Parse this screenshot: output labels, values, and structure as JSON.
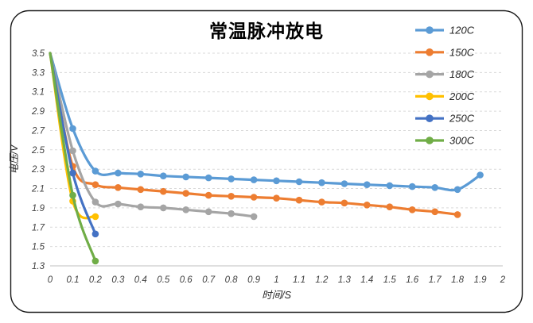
{
  "chart_data": {
    "type": "line",
    "title": "常温脉冲放电",
    "xlabel": "时间/S",
    "ylabel": "电压/V",
    "xlim": [
      0,
      2
    ],
    "ylim": [
      1.3,
      3.5
    ],
    "grid": "horizontal dashed gridlines every 0.2V",
    "legend_position": "right-top",
    "gridline_color": "#d9d9d9",
    "axis_line_color": "#bfbfbf",
    "x_tick_labels": [
      "0",
      "0.1",
      "0.2",
      "0.3",
      "0.4",
      "0.5",
      "0.6",
      "0.7",
      "0.8",
      "0.9",
      "1",
      "1.1",
      "1.2",
      "1.3",
      "1.4",
      "1.5",
      "1.6",
      "1.7",
      "1.8",
      "1.9",
      "2"
    ],
    "y_tick_labels": [
      "3.5",
      "3.3",
      "3.1",
      "2.9",
      "2.7",
      "2.5",
      "2.3",
      "2.1",
      "1.9",
      "1.7",
      "1.5",
      "1.3"
    ],
    "y_tick_values": [
      3.5,
      3.3,
      3.1,
      2.9,
      2.7,
      2.5,
      2.3,
      2.1,
      1.9,
      1.7,
      1.5,
      1.3
    ],
    "series": [
      {
        "name": "120C",
        "color": "#5B9BD5",
        "x": [
          0,
          0.1,
          0.2,
          0.3,
          0.4,
          0.5,
          0.6,
          0.7,
          0.8,
          0.9,
          1.0,
          1.1,
          1.2,
          1.3,
          1.4,
          1.5,
          1.6,
          1.7,
          1.8,
          1.9
        ],
        "y": [
          3.5,
          2.72,
          2.28,
          2.26,
          2.25,
          2.23,
          2.22,
          2.21,
          2.2,
          2.19,
          2.18,
          2.17,
          2.16,
          2.15,
          2.14,
          2.13,
          2.12,
          2.11,
          2.09,
          2.24
        ]
      },
      {
        "name": "150C",
        "color": "#ED7D31",
        "x": [
          0,
          0.1,
          0.2,
          0.3,
          0.4,
          0.5,
          0.6,
          0.7,
          0.8,
          0.9,
          1.0,
          1.1,
          1.2,
          1.3,
          1.4,
          1.5,
          1.6,
          1.7,
          1.8
        ],
        "y": [
          3.5,
          2.33,
          2.14,
          2.11,
          2.09,
          2.07,
          2.05,
          2.03,
          2.02,
          2.01,
          2.0,
          1.98,
          1.96,
          1.95,
          1.93,
          1.91,
          1.88,
          1.86,
          1.83
        ]
      },
      {
        "name": "180C",
        "color": "#A5A5A5",
        "x": [
          0,
          0.1,
          0.2,
          0.3,
          0.4,
          0.5,
          0.6,
          0.7,
          0.8,
          0.9
        ],
        "y": [
          3.5,
          2.49,
          1.96,
          1.94,
          1.91,
          1.9,
          1.88,
          1.86,
          1.84,
          1.81
        ]
      },
      {
        "name": "200C",
        "color": "#FFC000",
        "x": [
          0,
          0.1,
          0.2
        ],
        "y": [
          3.5,
          1.97,
          1.81
        ]
      },
      {
        "name": "250C",
        "color": "#4472C4",
        "x": [
          0,
          0.1,
          0.2
        ],
        "y": [
          3.5,
          2.26,
          1.63
        ]
      },
      {
        "name": "300C",
        "color": "#70AD47",
        "x": [
          0,
          0.1,
          0.2
        ],
        "y": [
          3.5,
          2.03,
          1.35
        ]
      }
    ]
  }
}
